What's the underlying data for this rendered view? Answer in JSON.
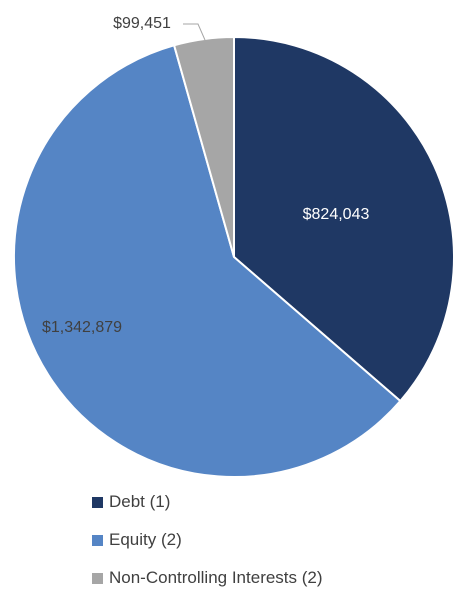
{
  "chart_data": {
    "type": "pie",
    "start_angle_deg": 0,
    "direction": "clockwise",
    "slices": [
      {
        "name": "Debt (1)",
        "value": 824043,
        "label": "$824,043",
        "color": "#1f3864"
      },
      {
        "name": "Equity (2)",
        "value": 1342879,
        "label": "$1,342,879",
        "color": "#5585c5"
      },
      {
        "name": "Non-Controlling Interests (2)",
        "value": 99451,
        "label": "$99,451",
        "color": "#a6a6a6"
      }
    ],
    "legend_position": "bottom"
  },
  "legend": {
    "items": [
      {
        "label": "Debt (1)",
        "color": "#1f3864"
      },
      {
        "label": "Equity (2)",
        "color": "#5585c5"
      },
      {
        "label": "Non-Controlling Interests (2)",
        "color": "#a6a6a6"
      }
    ]
  }
}
